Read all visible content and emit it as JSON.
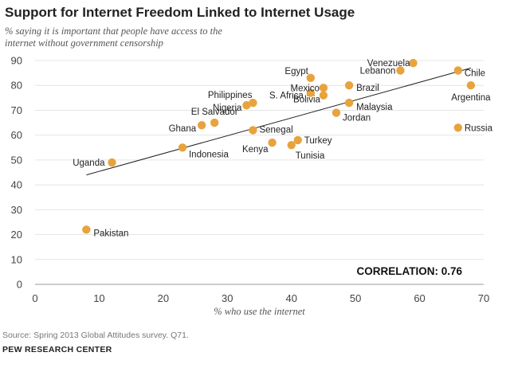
{
  "chart_data": {
    "type": "scatter",
    "title": "Support for Internet Freedom Linked to Internet Usage",
    "subtitle": "% saying it is important that people have access to the internet without government censorship",
    "xlabel": "% who use the internet",
    "ylabel": "",
    "xlim": [
      0,
      70
    ],
    "ylim": [
      0,
      90
    ],
    "xticks": [
      0,
      10,
      20,
      30,
      40,
      50,
      60,
      70
    ],
    "yticks": [
      0,
      10,
      20,
      30,
      40,
      50,
      60,
      70,
      80,
      90
    ],
    "point_color": "#E8A33D",
    "trendline": {
      "x": [
        8,
        68
      ],
      "y": [
        44,
        87
      ],
      "color": "#222222"
    },
    "points": [
      {
        "label": "Pakistan",
        "x": 8,
        "y": 22
      },
      {
        "label": "Uganda",
        "x": 12,
        "y": 49
      },
      {
        "label": "Indonesia",
        "x": 23,
        "y": 55
      },
      {
        "label": "Ghana",
        "x": 26,
        "y": 64
      },
      {
        "label": "El Salvador",
        "x": 28,
        "y": 65
      },
      {
        "label": "Nigeria",
        "x": 33,
        "y": 72
      },
      {
        "label": "Philippines",
        "x": 34,
        "y": 73
      },
      {
        "label": "Senegal",
        "x": 34,
        "y": 62
      },
      {
        "label": "Kenya",
        "x": 37,
        "y": 57
      },
      {
        "label": "Tunisia",
        "x": 40,
        "y": 56
      },
      {
        "label": "Turkey",
        "x": 41,
        "y": 58
      },
      {
        "label": "Egypt",
        "x": 43,
        "y": 83
      },
      {
        "label": "S. Africa",
        "x": 43,
        "y": 77
      },
      {
        "label": "Mexico",
        "x": 45,
        "y": 79
      },
      {
        "label": "Bolivia",
        "x": 45,
        "y": 76
      },
      {
        "label": "Jordan",
        "x": 47,
        "y": 69
      },
      {
        "label": "Brazil",
        "x": 49,
        "y": 80
      },
      {
        "label": "Malaysia",
        "x": 49,
        "y": 73
      },
      {
        "label": "Lebanon",
        "x": 57,
        "y": 86
      },
      {
        "label": "Venezuela",
        "x": 59,
        "y": 89
      },
      {
        "label": "Chile",
        "x": 66,
        "y": 86
      },
      {
        "label": "Russia",
        "x": 66,
        "y": 63
      },
      {
        "label": "Argentina",
        "x": 68,
        "y": 80
      }
    ],
    "annotation": "CORRELATION: 0.76"
  },
  "footer": {
    "source": "Source: Spring 2013 Global Attitudes survey. Q71.",
    "org": "PEW RESEARCH CENTER"
  }
}
